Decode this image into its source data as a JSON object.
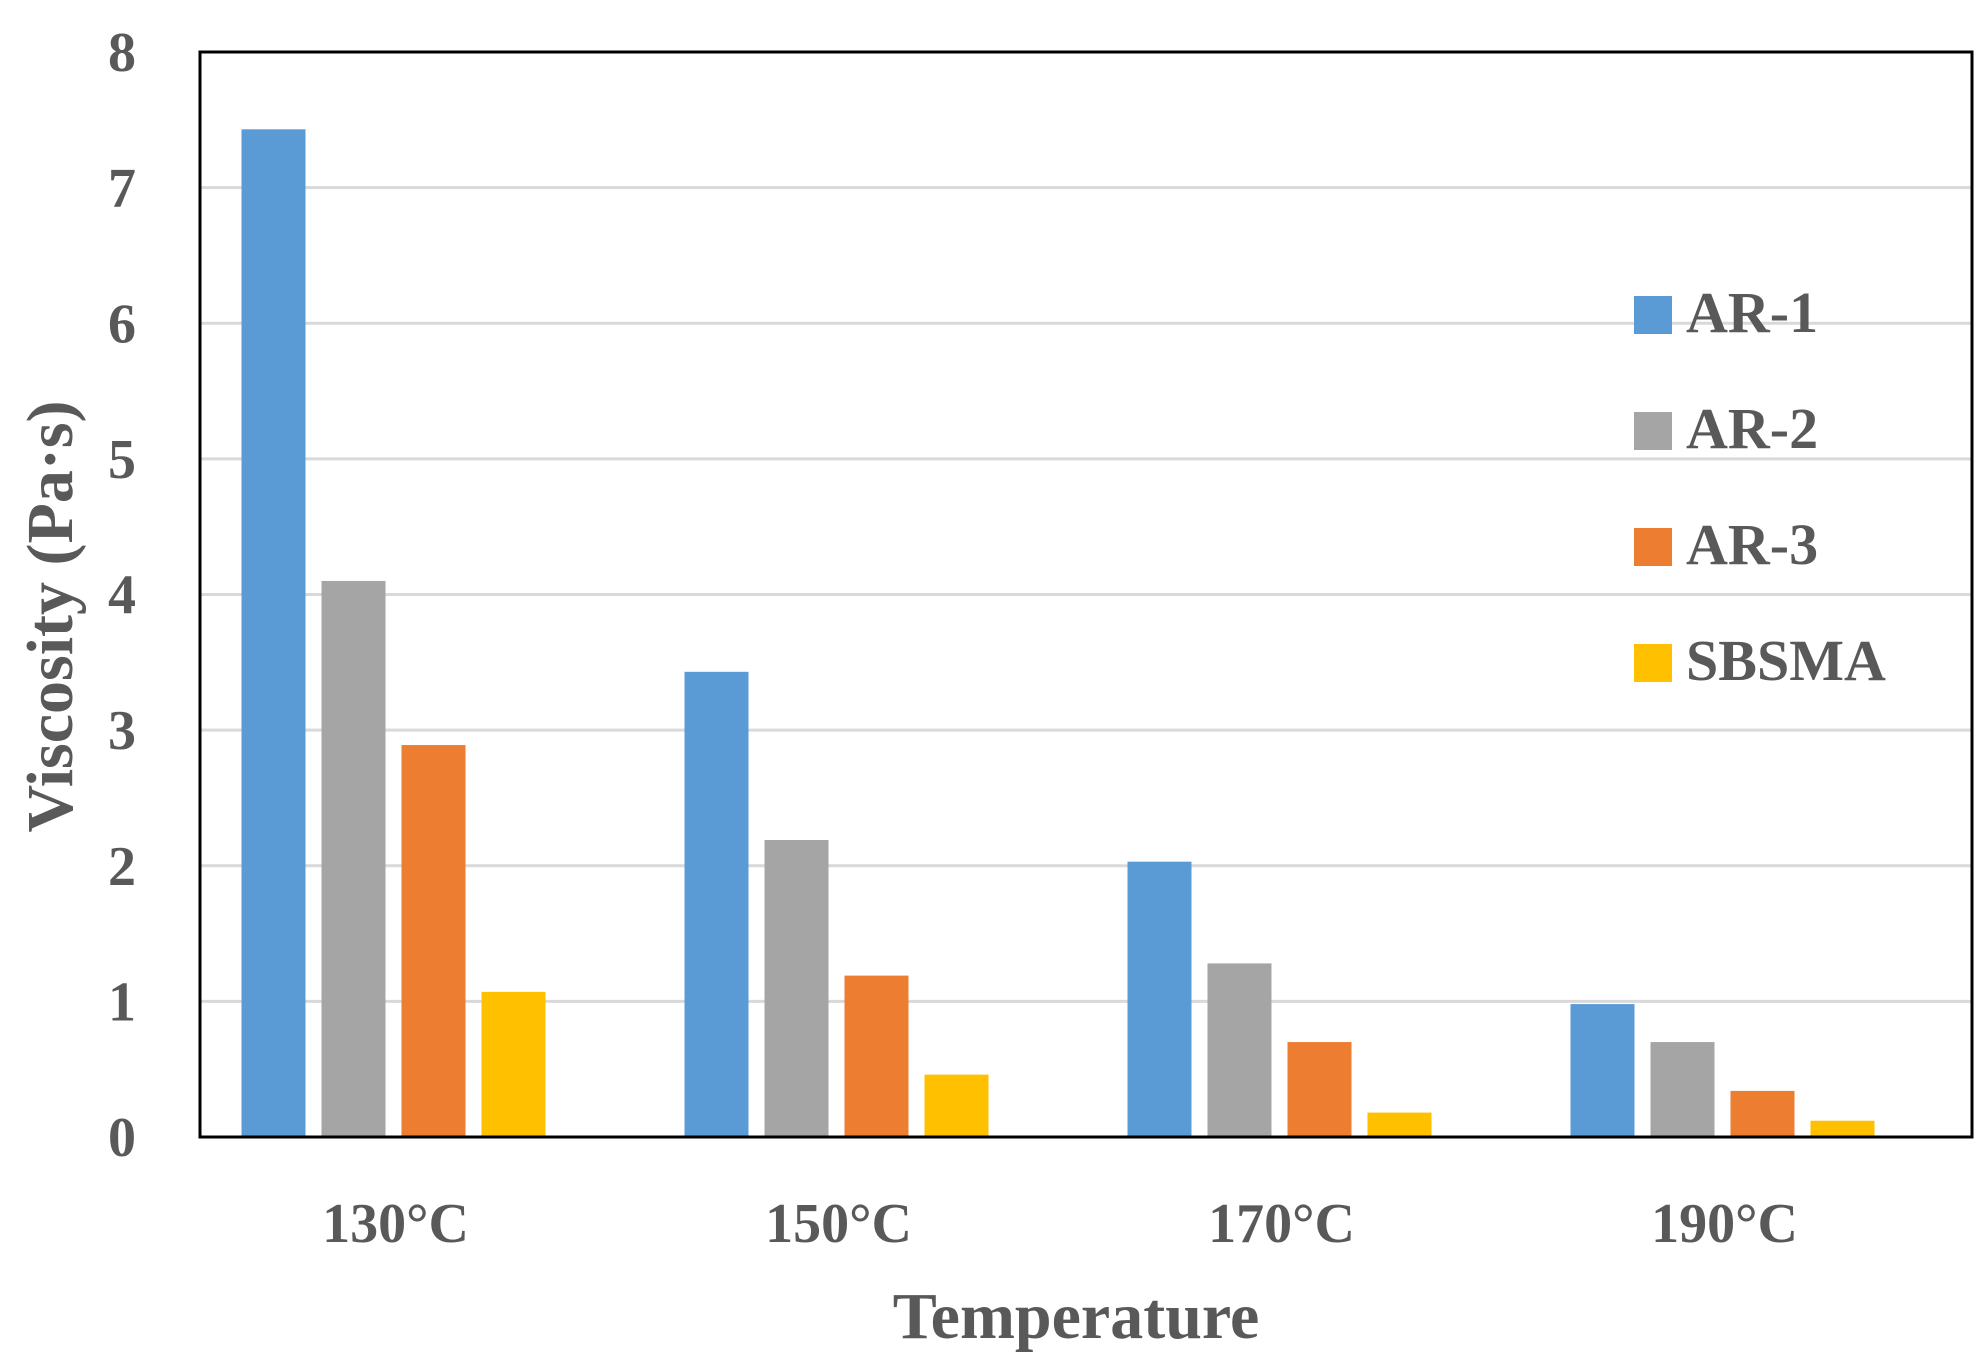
{
  "chart_data": {
    "type": "bar",
    "title": "",
    "xlabel": "Temperature",
    "ylabel": "Viscosity (Pa·s)",
    "ylim": [
      0,
      8
    ],
    "yticks": [
      0,
      1,
      2,
      3,
      4,
      5,
      6,
      7,
      8
    ],
    "grid": true,
    "legend_position": "right",
    "categories": [
      "130°C",
      "150°C",
      "170°C",
      "190°C"
    ],
    "series": [
      {
        "name": "AR-1",
        "color": "#5b9bd5",
        "values": [
          7.43,
          3.43,
          2.03,
          0.98
        ]
      },
      {
        "name": "AR-2",
        "color": "#a5a5a5",
        "values": [
          4.1,
          2.19,
          1.28,
          0.7
        ]
      },
      {
        "name": "AR-3",
        "color": "#ed7d31",
        "values": [
          2.89,
          1.19,
          0.7,
          0.34
        ]
      },
      {
        "name": "SBSMA",
        "color": "#ffc000",
        "values": [
          1.07,
          0.46,
          0.18,
          0.12
        ]
      }
    ]
  }
}
